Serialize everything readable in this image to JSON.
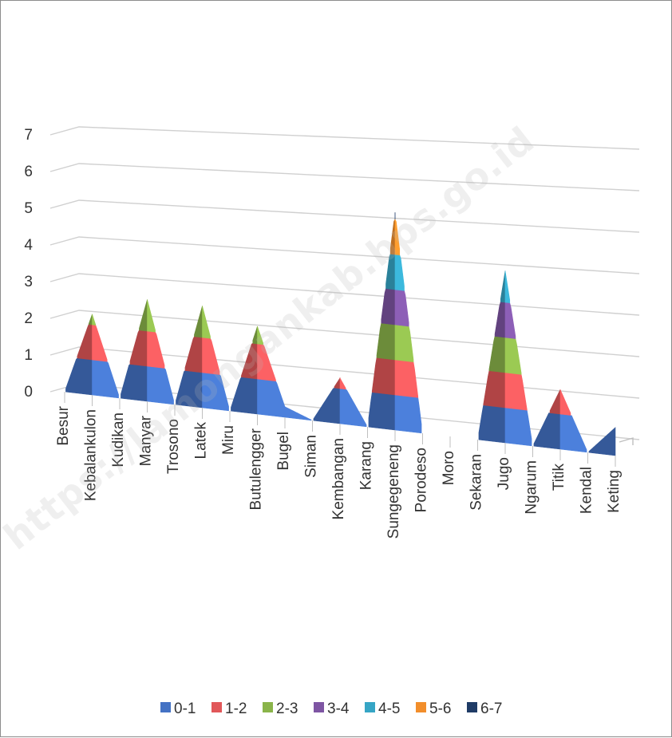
{
  "chart_data": {
    "type": "area",
    "title": "",
    "xlabel": "",
    "ylabel": "",
    "ylim": [
      0,
      7
    ],
    "yticks": [
      "0",
      "1",
      "2",
      "3",
      "4",
      "5",
      "6",
      "7"
    ],
    "grid": true,
    "legend_position": "bottom",
    "categories": [
      "Besur",
      "Kebalankulon",
      "Kudikan",
      "Manyar",
      "Trosono",
      "Latek",
      "Miru",
      "Butulengger",
      "Bugel",
      "Siman",
      "Kembangan",
      "Karang",
      "Sungegeneng",
      "Porodeso",
      "Moro",
      "Sekaran",
      "Jugo",
      "Ngarum",
      "Titik",
      "Kendal",
      "Keting"
    ],
    "values": [
      0,
      2.3,
      0,
      2.9,
      0,
      2.9,
      0,
      2.5,
      0.3,
      0,
      1.3,
      0,
      6.2,
      0,
      0,
      0,
      4.9,
      0,
      1.7,
      0,
      0.8
    ],
    "bands": [
      {
        "name": "0-1",
        "color": "#4472c4"
      },
      {
        "name": "1-2",
        "color": "#e15759"
      },
      {
        "name": "2-3",
        "color": "#8ab44a"
      },
      {
        "name": "3-4",
        "color": "#7e55a3"
      },
      {
        "name": "4-5",
        "color": "#36a5c5"
      },
      {
        "name": "5-6",
        "color": "#f28e2b"
      },
      {
        "name": "6-7",
        "color": "#1f3b66"
      }
    ]
  },
  "watermark": "https://lamongankab.bps.go.id"
}
